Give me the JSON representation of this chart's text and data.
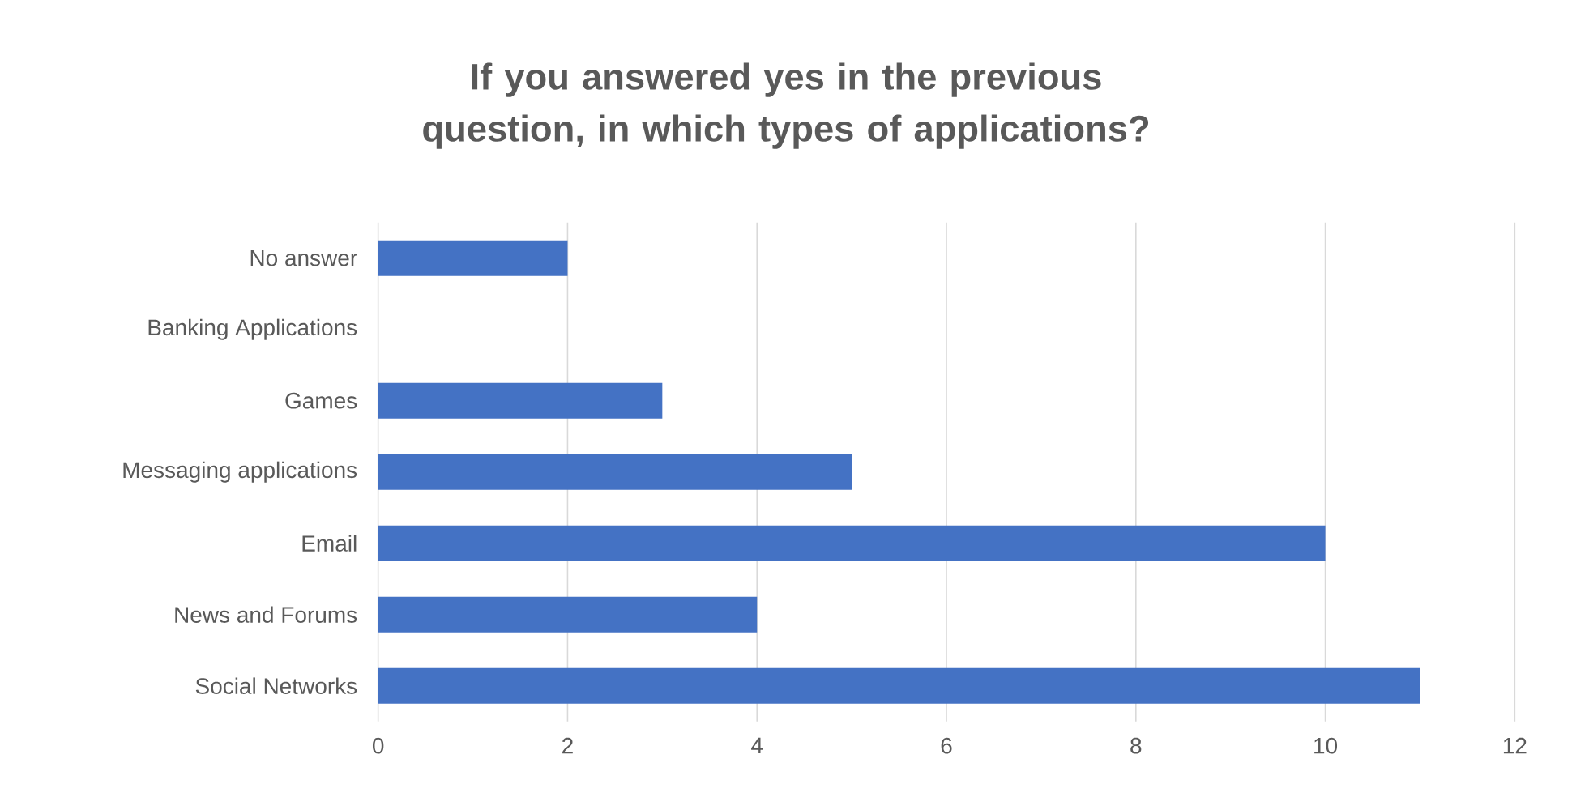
{
  "chart_data": {
    "type": "bar",
    "orientation": "horizontal",
    "title": "If you answered yes in the previous question, in which types of applications?",
    "categories": [
      "No answer",
      "Banking Applications",
      "Games",
      "Messaging applications",
      "Email",
      "News and Forums",
      "Social Networks"
    ],
    "values": [
      2,
      0,
      3,
      5,
      10,
      4,
      11
    ],
    "color": "#4472c4",
    "xlim": [
      0,
      12
    ],
    "xticks": [
      0,
      2,
      4,
      6,
      8,
      10,
      12
    ],
    "grid": "x"
  }
}
